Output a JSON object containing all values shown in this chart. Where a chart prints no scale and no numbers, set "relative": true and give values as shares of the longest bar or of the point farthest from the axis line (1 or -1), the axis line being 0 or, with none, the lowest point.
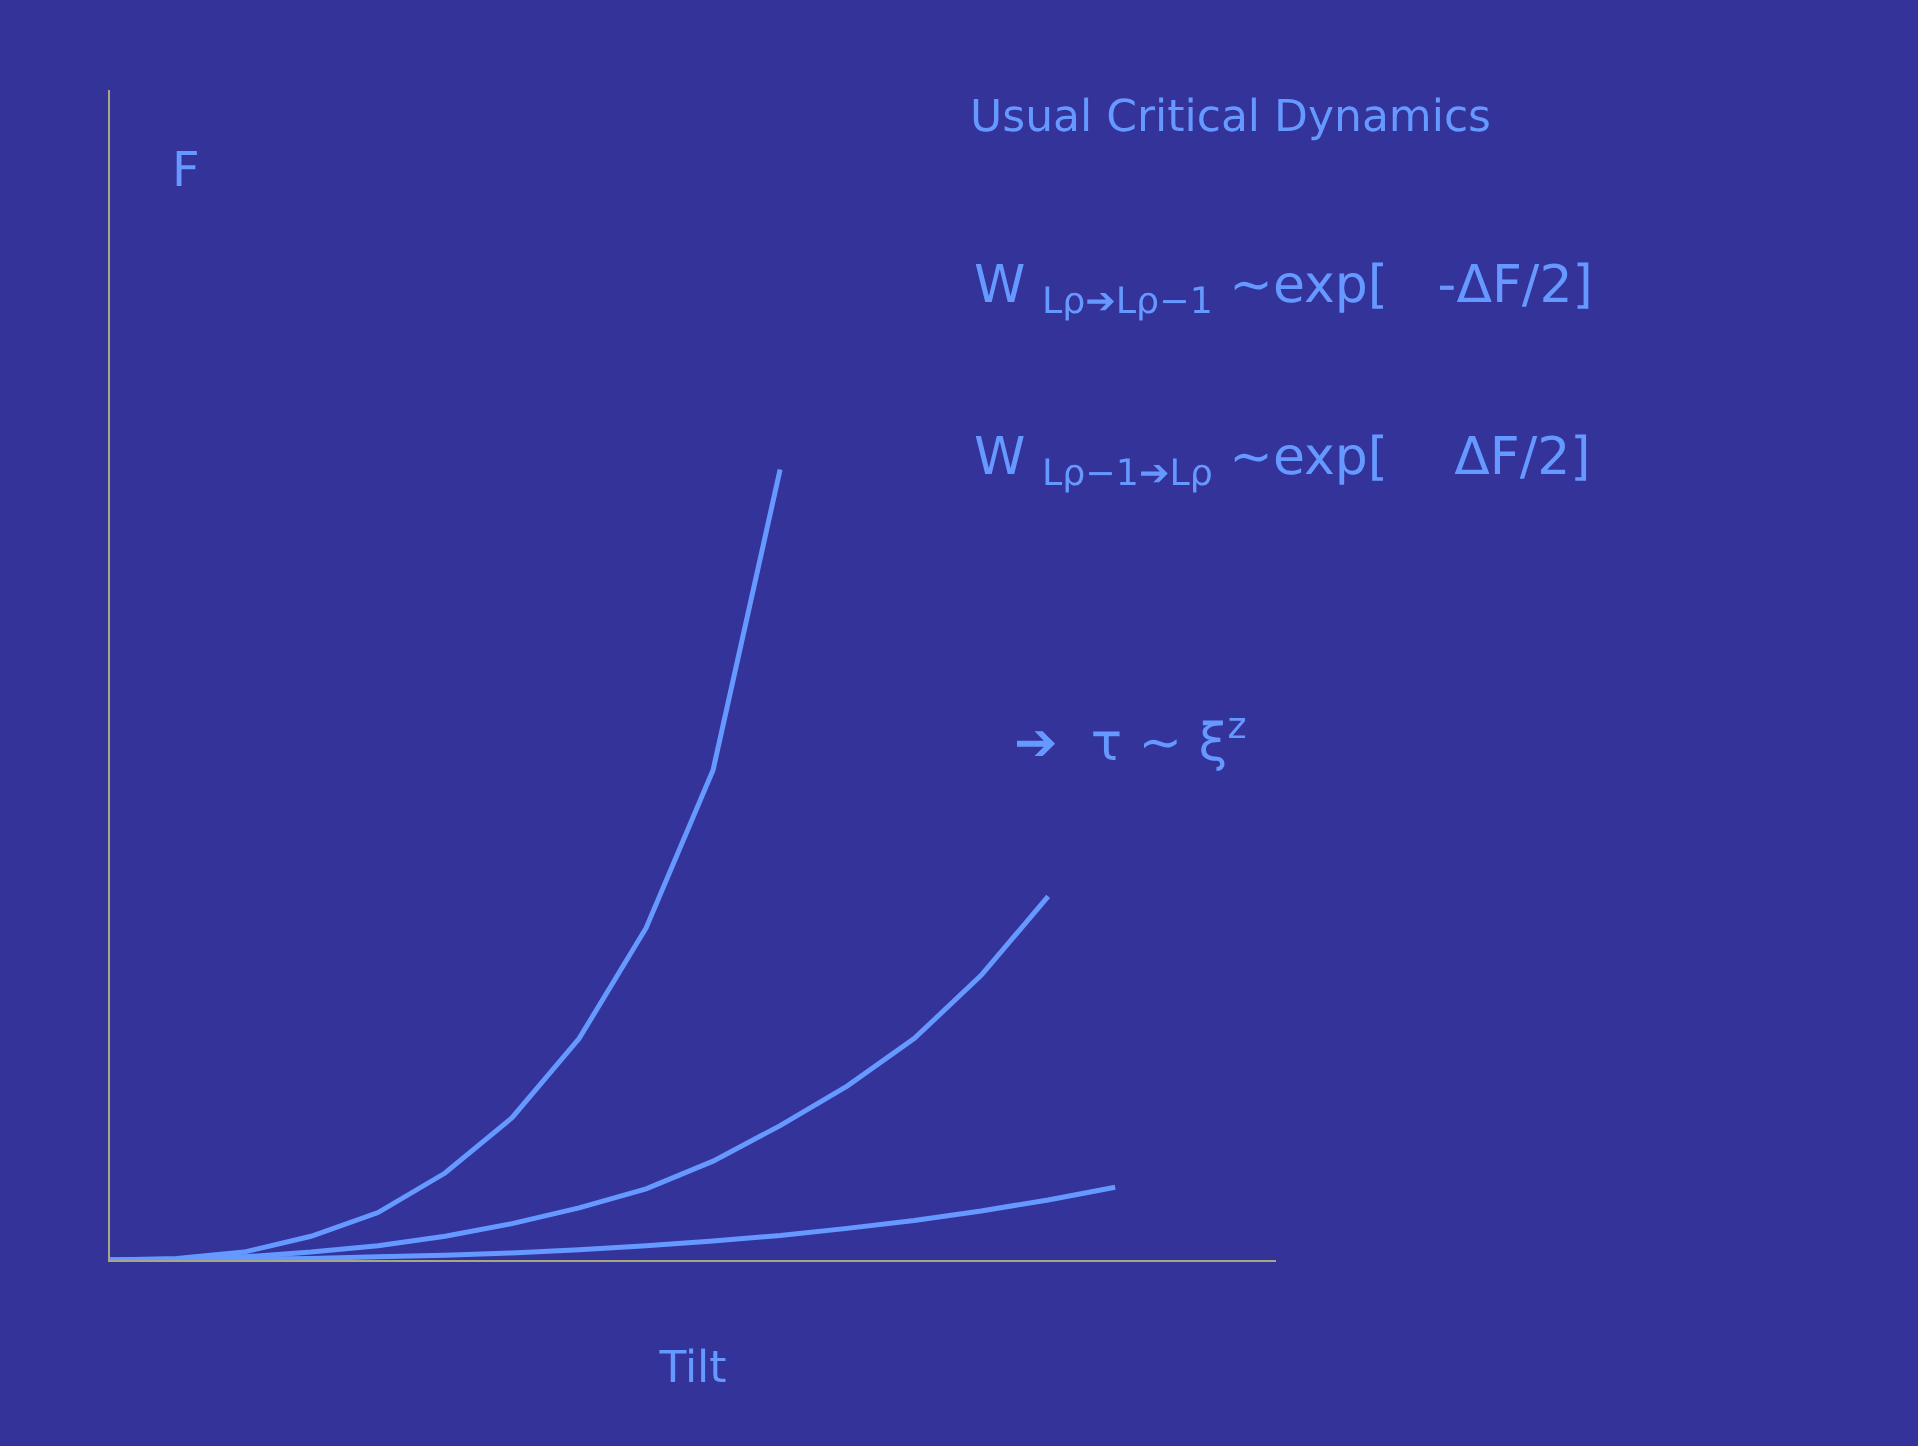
{
  "chart_data": {
    "type": "line",
    "relative": true,
    "title": "Usual Critical Dynamics",
    "xlabel": "Tilt",
    "tick_labels": false,
    "grid": false,
    "marker": "none",
    "line_style": "solid",
    "annotations": [
      "F",
      "W $_{Lρ➔Lρ−1}$ ~exp[   -ΔF/2]",
      "W $_{Lρ−1➔Lρ}$ ~exp[    ΔF/2]",
      "➔  τ ~ ξ$^{z}$"
    ],
    "categories": [
      null,
      null,
      null,
      null,
      null,
      null,
      null,
      null,
      null,
      null,
      null,
      null,
      null,
      null,
      null,
      null
    ],
    "series": [
      {
        "color": "#6699ff",
        "values": [
          0,
          0.002,
          0.01,
          0.03,
          0.06,
          0.11,
          0.18,
          0.28,
          0.42,
          0.62,
          1,
          null,
          null,
          null,
          null,
          null
        ]
      },
      {
        "color": "#6699ff",
        "values": [
          0,
          0.001,
          0.004,
          0.01,
          0.018,
          0.03,
          0.046,
          0.066,
          0.09,
          0.125,
          0.17,
          0.22,
          0.28,
          0.36,
          0.46,
          null
        ]
      },
      {
        "color": "#6699ff",
        "values": [
          0,
          0,
          0.001,
          0.002,
          0.004,
          0.006,
          0.009,
          0.013,
          0.018,
          0.024,
          0.031,
          0.04,
          0.05,
          0.062,
          0.076,
          0.092
        ]
      }
    ]
  }
}
